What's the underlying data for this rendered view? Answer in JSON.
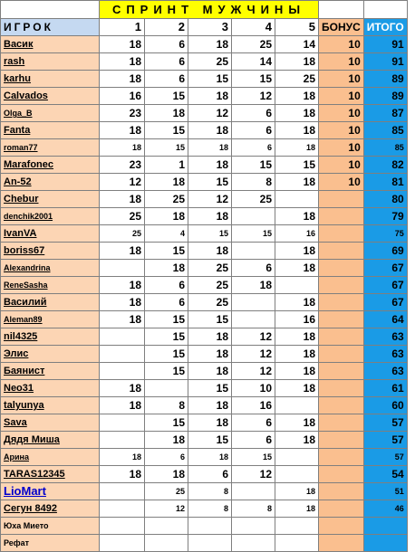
{
  "sheet": {
    "title": "СПРИНТ  МУЖЧИНЫ",
    "headers": {
      "player": "ИГРОК",
      "stages": [
        "1",
        "2",
        "3",
        "4",
        "5"
      ],
      "bonus": "БОНУС",
      "total": "ИТОГО"
    },
    "rows": [
      {
        "name": "Васик",
        "s": [
          "18",
          "6",
          "18",
          "25",
          "14"
        ],
        "bonus": "10",
        "total": "91"
      },
      {
        "name": "rash",
        "s": [
          "18",
          "6",
          "25",
          "14",
          "18"
        ],
        "bonus": "10",
        "total": "91"
      },
      {
        "name": "karhu",
        "s": [
          "18",
          "6",
          "15",
          "15",
          "25"
        ],
        "bonus": "10",
        "total": "89"
      },
      {
        "name": "Calvados",
        "s": [
          "16",
          "15",
          "18",
          "12",
          "18"
        ],
        "bonus": "10",
        "total": "89"
      },
      {
        "name": "Olga_B",
        "s": [
          "23",
          "18",
          "12",
          "6",
          "18"
        ],
        "bonus": "10",
        "total": "87"
      },
      {
        "name": "Fanta",
        "s": [
          "18",
          "15",
          "18",
          "6",
          "18"
        ],
        "bonus": "10",
        "total": "85"
      },
      {
        "name": "roman77",
        "s": [
          "18",
          "15",
          "18",
          "6",
          "18"
        ],
        "bonus": "10",
        "total": "85"
      },
      {
        "name": "Marafonec",
        "s": [
          "23",
          "1",
          "18",
          "15",
          "15"
        ],
        "bonus": "10",
        "total": "82"
      },
      {
        "name": "An-52",
        "s": [
          "12",
          "18",
          "15",
          "8",
          "18"
        ],
        "bonus": "10",
        "total": "81"
      },
      {
        "name": "Chebur",
        "s": [
          "18",
          "25",
          "12",
          "25",
          ""
        ],
        "bonus": "",
        "total": "80"
      },
      {
        "name": "denchik2001",
        "s": [
          "25",
          "18",
          "18",
          "",
          "18"
        ],
        "bonus": "",
        "total": "79"
      },
      {
        "name": "IvanVA",
        "s": [
          "25",
          "4",
          "15",
          "15",
          "16"
        ],
        "bonus": "",
        "total": "75"
      },
      {
        "name": "boriss67",
        "s": [
          "18",
          "15",
          "18",
          "",
          "18"
        ],
        "bonus": "",
        "total": "69"
      },
      {
        "name": "Alexandrina",
        "s": [
          "",
          "18",
          "25",
          "6",
          "18"
        ],
        "bonus": "",
        "total": "67"
      },
      {
        "name": "ReneSasha",
        "s": [
          "18",
          "6",
          "25",
          "18",
          ""
        ],
        "bonus": "",
        "total": "67"
      },
      {
        "name": "Василий",
        "s": [
          "18",
          "6",
          "25",
          "",
          "18"
        ],
        "bonus": "",
        "total": "67"
      },
      {
        "name": "Aleman89",
        "s": [
          "18",
          "15",
          "15",
          "",
          "16"
        ],
        "bonus": "",
        "total": "64"
      },
      {
        "name": "nil4325",
        "s": [
          "",
          "15",
          "18",
          "12",
          "18"
        ],
        "bonus": "",
        "total": "63"
      },
      {
        "name": "Элис",
        "s": [
          "",
          "15",
          "18",
          "12",
          "18"
        ],
        "bonus": "",
        "total": "63"
      },
      {
        "name": "Баянист",
        "s": [
          "",
          "15",
          "18",
          "12",
          "18"
        ],
        "bonus": "",
        "total": "63"
      },
      {
        "name": "Neo31",
        "s": [
          "18",
          "",
          "15",
          "10",
          "18"
        ],
        "bonus": "",
        "total": "61"
      },
      {
        "name": "talyunya",
        "s": [
          "18",
          "8",
          "18",
          "16",
          ""
        ],
        "bonus": "",
        "total": "60"
      },
      {
        "name": "Sava",
        "s": [
          "",
          "15",
          "18",
          "6",
          "18"
        ],
        "bonus": "",
        "total": "57"
      },
      {
        "name": "Дядя Миша",
        "s": [
          "",
          "18",
          "15",
          "6",
          "18"
        ],
        "bonus": "",
        "total": "57"
      },
      {
        "name": "Арина",
        "s": [
          "18",
          "6",
          "18",
          "15",
          ""
        ],
        "bonus": "",
        "total": "57"
      },
      {
        "name": "TARAS12345",
        "s": [
          "18",
          "18",
          "6",
          "12",
          ""
        ],
        "bonus": "",
        "total": "54"
      },
      {
        "name": "LioMart",
        "s": [
          "",
          "25",
          "8",
          "",
          "18"
        ],
        "bonus": "",
        "total": "51"
      },
      {
        "name": "Сегун 8492",
        "s": [
          "",
          "12",
          "8",
          "8",
          "18"
        ],
        "bonus": "",
        "total": "46"
      },
      {
        "name": "Юха Мието",
        "s": [
          "",
          "",
          "",
          "",
          ""
        ],
        "bonus": "",
        "total": ""
      },
      {
        "name": "Рефат",
        "s": [
          "",
          "",
          "",
          "",
          ""
        ],
        "bonus": "",
        "total": ""
      }
    ]
  }
}
